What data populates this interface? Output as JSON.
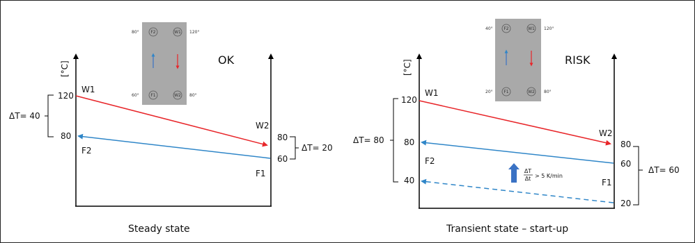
{
  "colors": {
    "hot": "#e8262a",
    "cold": "#2f86c8",
    "arrow_up": "#3a72c4",
    "plate": "#a9a9a9",
    "axis": "#000000"
  },
  "left": {
    "caption": "Steady state",
    "status": "OK",
    "unit": "[°C]",
    "delta_left": "ΔT= 40",
    "delta_right": "ΔT= 20",
    "tick_120": "120",
    "tick_80_left": "80",
    "tick_80_right": "80",
    "tick_60_right": "60",
    "w1": "W1",
    "w2": "W2",
    "f1": "F1",
    "f2": "F2",
    "hx": {
      "top_left_temp": "80°",
      "top_right_temp": "120°",
      "bottom_left_temp": "60°",
      "bottom_right_temp": "80°",
      "port_f2": "F2",
      "port_w1": "W1",
      "port_f1": "F1",
      "port_w2": "W2"
    }
  },
  "right": {
    "caption": "Transient state – start-up",
    "status": "RISK",
    "unit": "[°C]",
    "delta_left": "ΔT= 80",
    "delta_right": "ΔT= 60",
    "tick_120": "120",
    "tick_80_left": "80",
    "tick_40_left": "40",
    "tick_80_right": "80",
    "tick_60_right": "60",
    "tick_20_right": "20",
    "w1": "W1",
    "w2": "W2",
    "f1": "F1",
    "f2": "F2",
    "rate_num": "ΔT",
    "rate_den": "Δt",
    "rate_text": "> 5 K/min",
    "hx": {
      "top_left_temp": "40°",
      "top_right_temp": "120°",
      "bottom_left_temp": "20°",
      "bottom_right_temp": "80°",
      "port_f2": "F2",
      "port_w1": "W1",
      "port_f1": "F1",
      "port_w2": "W2"
    }
  }
}
